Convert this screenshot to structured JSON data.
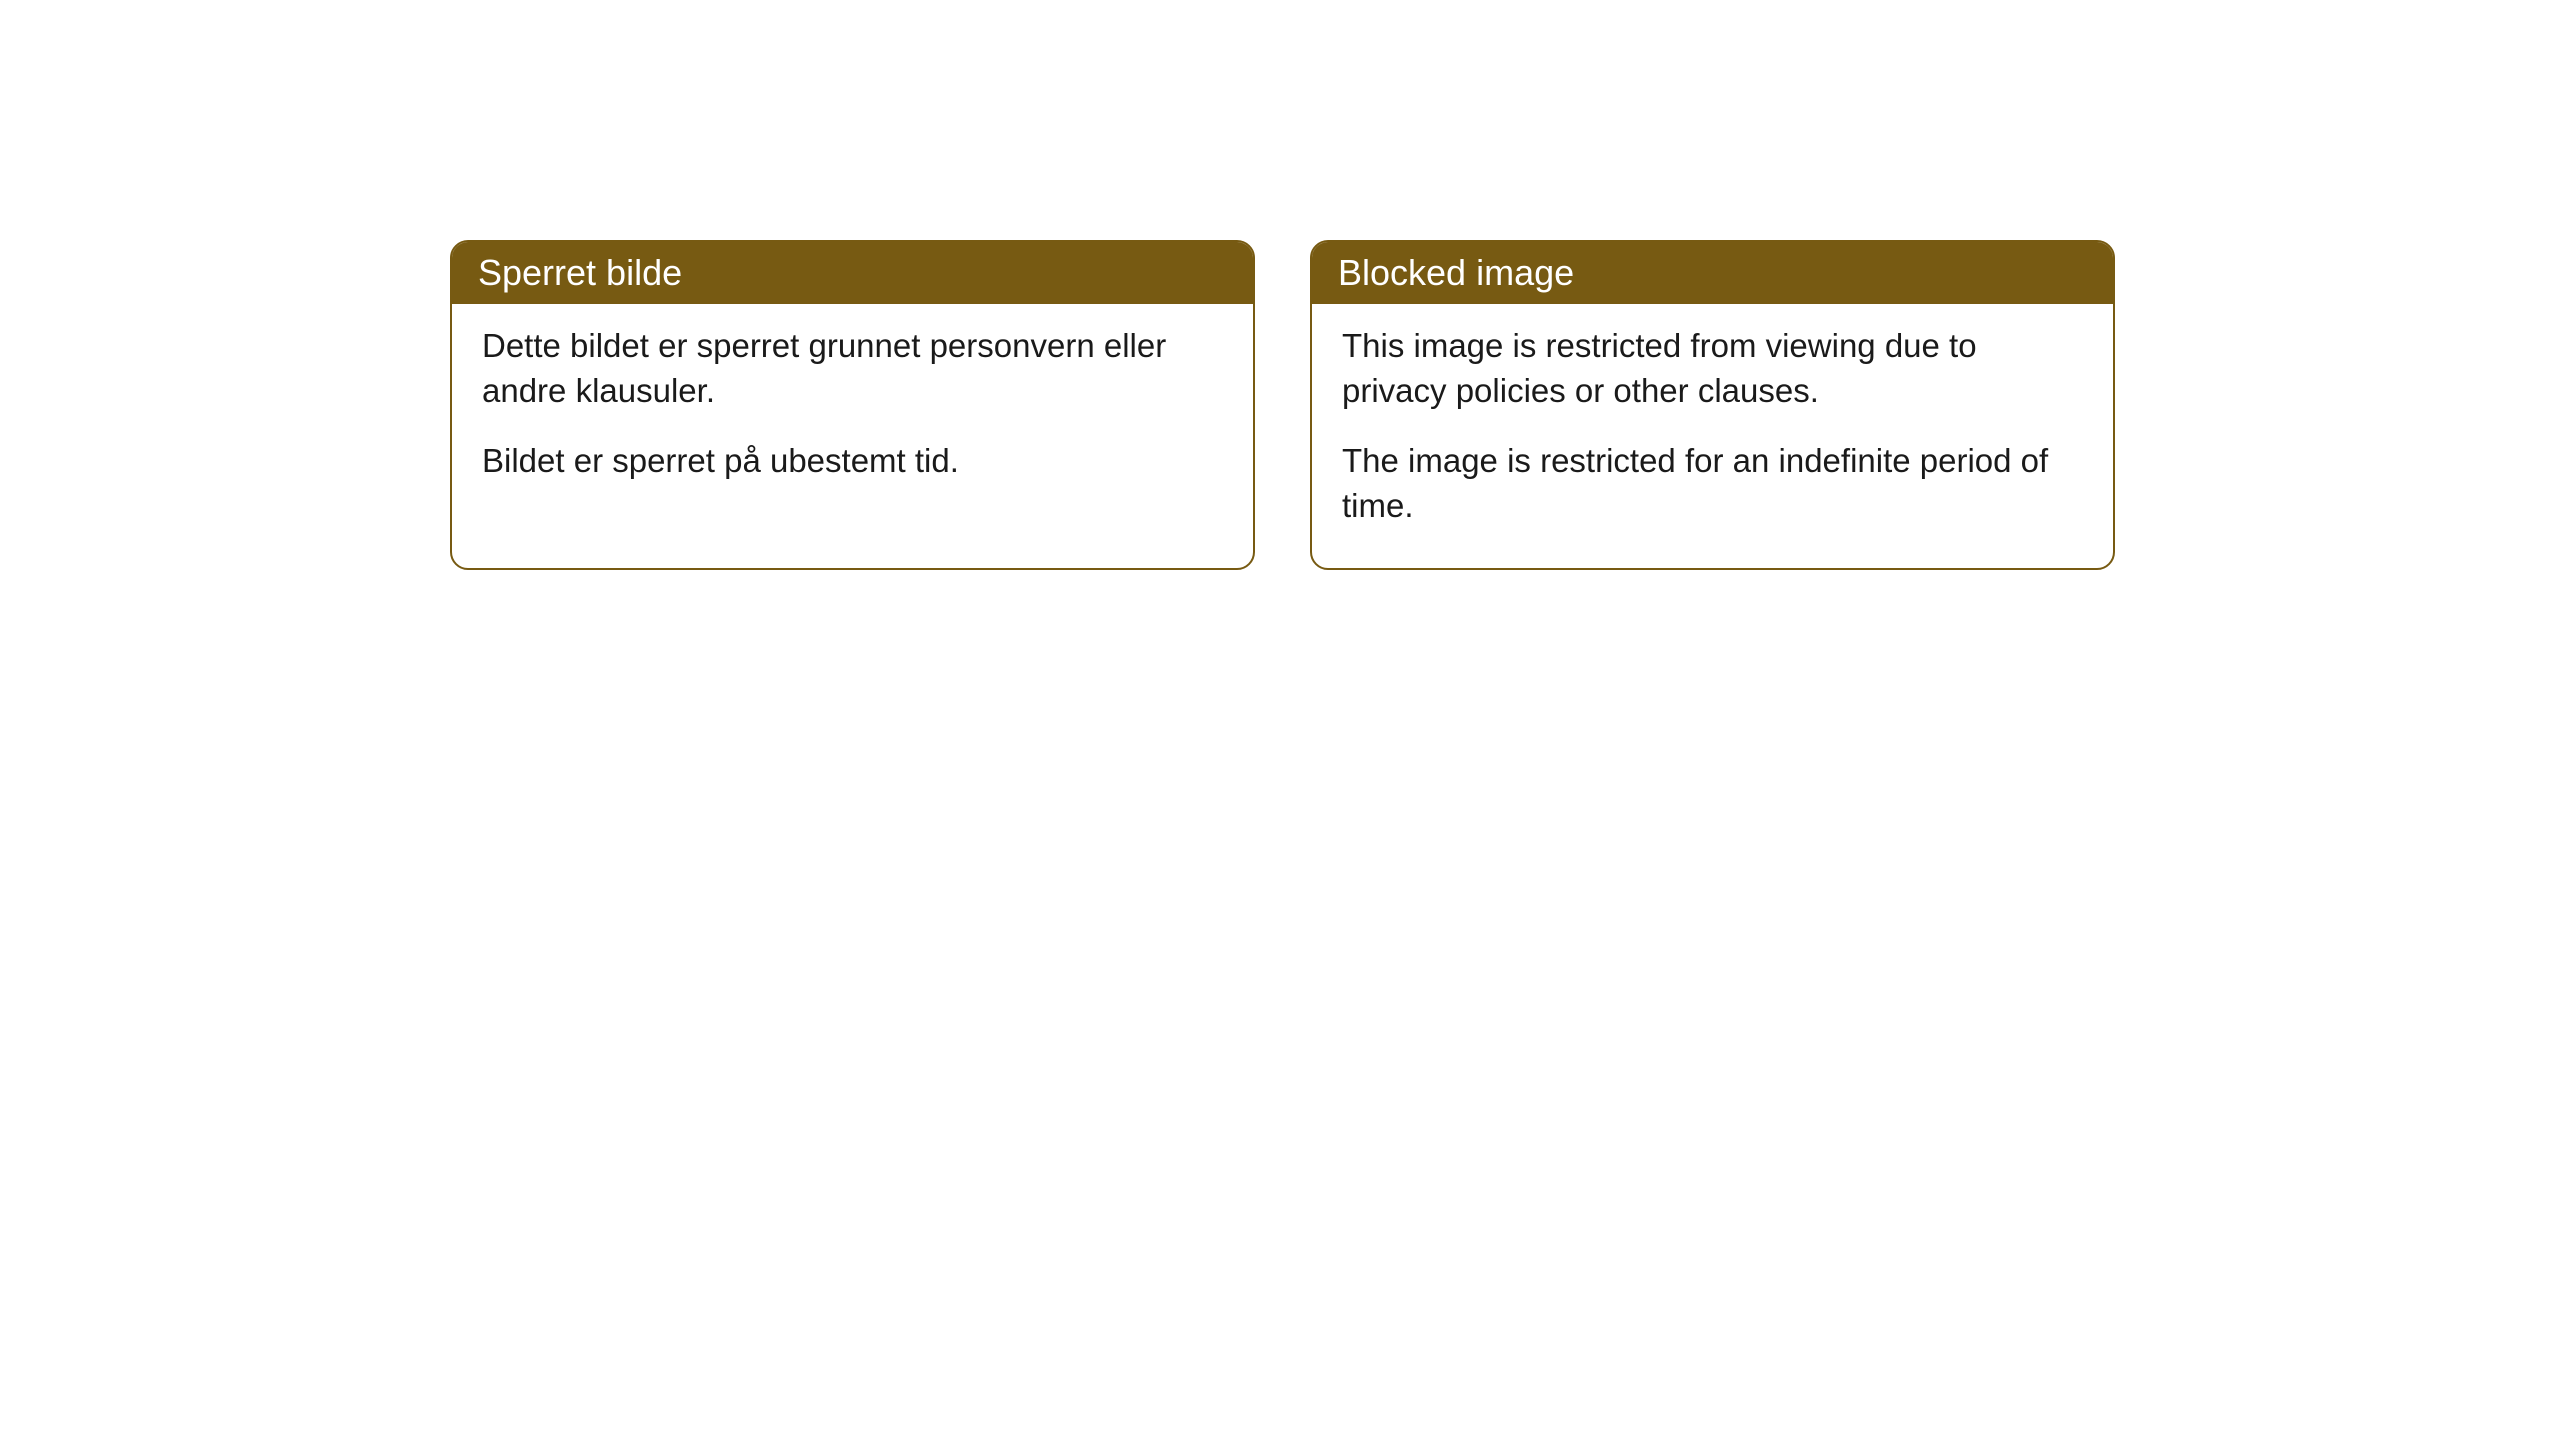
{
  "cards": [
    {
      "header": "Sperret bilde",
      "paragraph1": "Dette bildet er sperret grunnet personvern eller andre klausuler.",
      "paragraph2": "Bildet er sperret på ubestemt tid."
    },
    {
      "header": "Blocked image",
      "paragraph1": "This image is restricted from viewing due to privacy policies or other clauses.",
      "paragraph2": "The image is restricted for an indefinite period of time."
    }
  ],
  "styling": {
    "header_background": "#775a12",
    "header_text_color": "#ffffff",
    "border_color": "#775a12",
    "body_text_color": "#1a1a1a",
    "card_background": "#ffffff",
    "page_background": "#ffffff",
    "border_radius": 18,
    "header_fontsize": 36,
    "body_fontsize": 33
  }
}
